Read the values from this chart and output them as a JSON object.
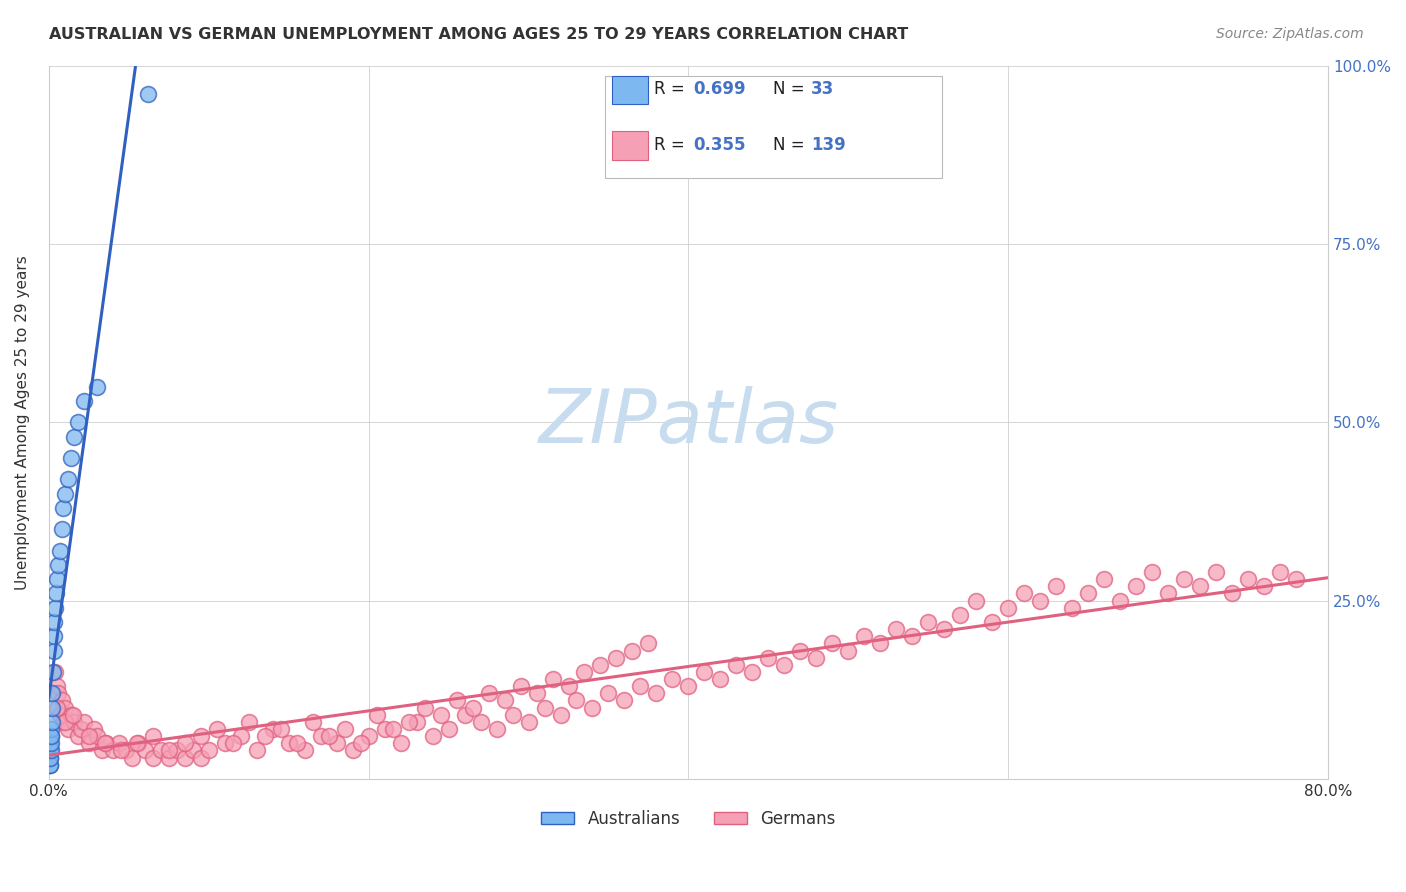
{
  "title": "AUSTRALIAN VS GERMAN UNEMPLOYMENT AMONG AGES 25 TO 29 YEARS CORRELATION CHART",
  "source": "Source: ZipAtlas.com",
  "ylabel": "Unemployment Among Ages 25 to 29 years",
  "xlabel": "",
  "xlim": [
    0,
    0.8
  ],
  "ylim": [
    0,
    1.0
  ],
  "aus_color": "#7EB8F0",
  "ger_color": "#F5A0B5",
  "aus_line_color": "#3060C0",
  "ger_line_color": "#E06080",
  "aus_R": 0.699,
  "aus_N": 33,
  "ger_R": 0.355,
  "ger_N": 139,
  "watermark_color": "#C8DCF0",
  "aus_x": [
    0.0005,
    0.0006,
    0.0007,
    0.0008,
    0.0009,
    0.001,
    0.0012,
    0.0013,
    0.0014,
    0.0015,
    0.0016,
    0.0018,
    0.002,
    0.0022,
    0.0025,
    0.003,
    0.0032,
    0.0035,
    0.004,
    0.0045,
    0.005,
    0.006,
    0.007,
    0.008,
    0.009,
    0.01,
    0.012,
    0.014,
    0.016,
    0.018,
    0.022,
    0.03,
    0.062
  ],
  "aus_y": [
    0.02,
    0.03,
    0.02,
    0.04,
    0.03,
    0.05,
    0.04,
    0.06,
    0.05,
    0.07,
    0.06,
    0.08,
    0.1,
    0.12,
    0.15,
    0.18,
    0.2,
    0.22,
    0.24,
    0.26,
    0.28,
    0.3,
    0.32,
    0.35,
    0.38,
    0.4,
    0.42,
    0.45,
    0.48,
    0.5,
    0.53,
    0.55,
    0.96
  ],
  "ger_x": [
    0.004,
    0.005,
    0.006,
    0.007,
    0.008,
    0.009,
    0.01,
    0.012,
    0.014,
    0.016,
    0.018,
    0.02,
    0.022,
    0.025,
    0.028,
    0.03,
    0.033,
    0.036,
    0.04,
    0.044,
    0.048,
    0.052,
    0.056,
    0.06,
    0.065,
    0.07,
    0.075,
    0.08,
    0.085,
    0.09,
    0.095,
    0.1,
    0.11,
    0.12,
    0.13,
    0.14,
    0.15,
    0.16,
    0.17,
    0.18,
    0.19,
    0.2,
    0.21,
    0.22,
    0.23,
    0.24,
    0.25,
    0.26,
    0.27,
    0.28,
    0.29,
    0.3,
    0.31,
    0.32,
    0.33,
    0.34,
    0.35,
    0.36,
    0.37,
    0.38,
    0.39,
    0.4,
    0.41,
    0.42,
    0.43,
    0.44,
    0.45,
    0.46,
    0.47,
    0.48,
    0.49,
    0.5,
    0.51,
    0.52,
    0.53,
    0.54,
    0.55,
    0.56,
    0.57,
    0.58,
    0.59,
    0.6,
    0.61,
    0.62,
    0.63,
    0.64,
    0.65,
    0.66,
    0.67,
    0.68,
    0.69,
    0.7,
    0.71,
    0.72,
    0.73,
    0.74,
    0.75,
    0.76,
    0.77,
    0.78,
    0.005,
    0.01,
    0.015,
    0.025,
    0.035,
    0.045,
    0.055,
    0.065,
    0.075,
    0.085,
    0.095,
    0.105,
    0.115,
    0.125,
    0.135,
    0.145,
    0.155,
    0.165,
    0.175,
    0.185,
    0.195,
    0.205,
    0.215,
    0.225,
    0.235,
    0.245,
    0.255,
    0.265,
    0.275,
    0.285,
    0.295,
    0.305,
    0.315,
    0.325,
    0.335,
    0.345,
    0.355,
    0.365,
    0.375
  ],
  "ger_y": [
    0.15,
    0.13,
    0.12,
    0.09,
    0.11,
    0.08,
    0.1,
    0.07,
    0.09,
    0.08,
    0.06,
    0.07,
    0.08,
    0.05,
    0.07,
    0.06,
    0.04,
    0.05,
    0.04,
    0.05,
    0.04,
    0.03,
    0.05,
    0.04,
    0.03,
    0.04,
    0.03,
    0.04,
    0.03,
    0.04,
    0.03,
    0.04,
    0.05,
    0.06,
    0.04,
    0.07,
    0.05,
    0.04,
    0.06,
    0.05,
    0.04,
    0.06,
    0.07,
    0.05,
    0.08,
    0.06,
    0.07,
    0.09,
    0.08,
    0.07,
    0.09,
    0.08,
    0.1,
    0.09,
    0.11,
    0.1,
    0.12,
    0.11,
    0.13,
    0.12,
    0.14,
    0.13,
    0.15,
    0.14,
    0.16,
    0.15,
    0.17,
    0.16,
    0.18,
    0.17,
    0.19,
    0.18,
    0.2,
    0.19,
    0.21,
    0.2,
    0.22,
    0.21,
    0.23,
    0.25,
    0.22,
    0.24,
    0.26,
    0.25,
    0.27,
    0.24,
    0.26,
    0.28,
    0.25,
    0.27,
    0.29,
    0.26,
    0.28,
    0.27,
    0.29,
    0.26,
    0.28,
    0.27,
    0.29,
    0.28,
    0.1,
    0.08,
    0.09,
    0.06,
    0.05,
    0.04,
    0.05,
    0.06,
    0.04,
    0.05,
    0.06,
    0.07,
    0.05,
    0.08,
    0.06,
    0.07,
    0.05,
    0.08,
    0.06,
    0.07,
    0.05,
    0.09,
    0.07,
    0.08,
    0.1,
    0.09,
    0.11,
    0.1,
    0.12,
    0.11,
    0.13,
    0.12,
    0.14,
    0.13,
    0.15,
    0.16,
    0.17,
    0.18,
    0.19
  ]
}
